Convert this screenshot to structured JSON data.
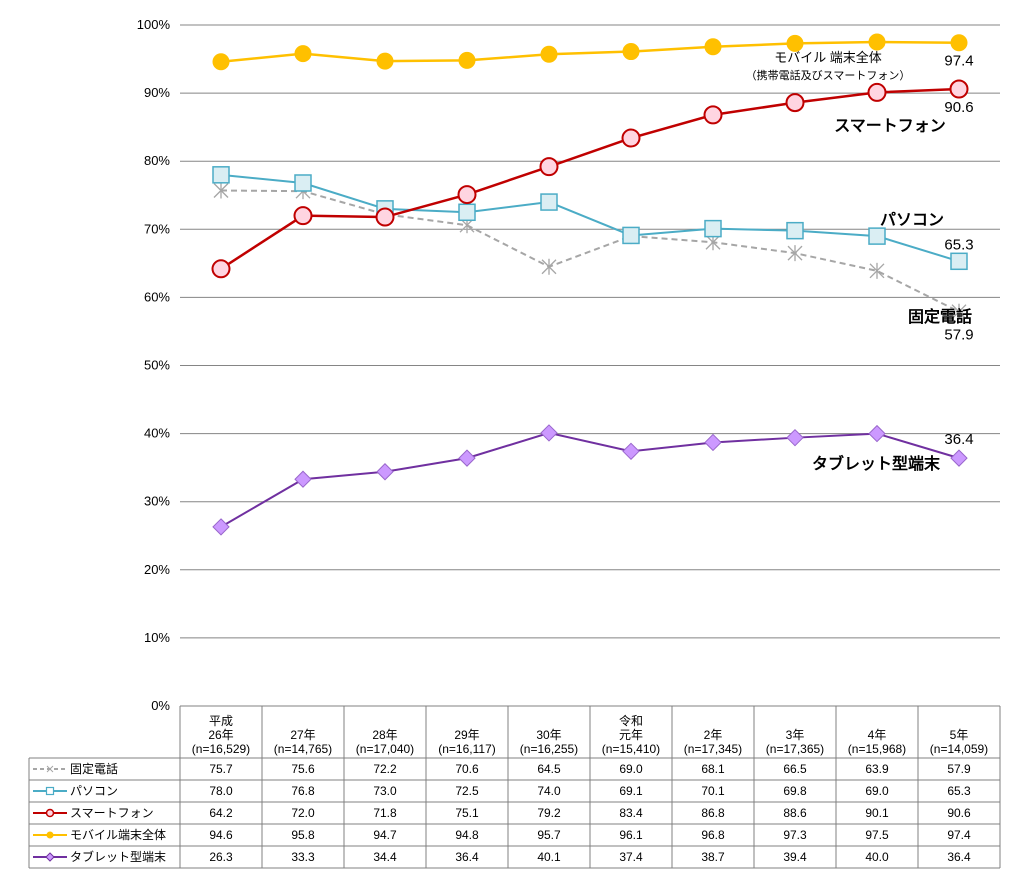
{
  "chart_data": {
    "type": "line",
    "y_axis": {
      "min": 0,
      "max": 100,
      "step": 10,
      "unit": "%",
      "ticks": [
        "0%",
        "10%",
        "20%",
        "30%",
        "40%",
        "50%",
        "60%",
        "70%",
        "80%",
        "90%",
        "100%"
      ]
    },
    "grid": true,
    "categories": [
      {
        "lines": [
          "平成",
          "26年",
          "(n=16,529)"
        ]
      },
      {
        "lines": [
          "27年",
          "(n=14,765)"
        ]
      },
      {
        "lines": [
          "28年",
          "(n=17,040)"
        ]
      },
      {
        "lines": [
          "29年",
          "(n=16,117)"
        ]
      },
      {
        "lines": [
          "30年",
          "(n=16,255)"
        ]
      },
      {
        "lines": [
          "令和",
          "元年",
          "(n=15,410)"
        ]
      },
      {
        "lines": [
          "2年",
          "(n=17,345)"
        ]
      },
      {
        "lines": [
          "3年",
          "(n=17,365)"
        ]
      },
      {
        "lines": [
          "4年",
          "(n=15,968)"
        ]
      },
      {
        "lines": [
          "5年",
          "(n=14,059)"
        ]
      }
    ],
    "series": [
      {
        "name": "固定電話",
        "color": "#a6a6a6",
        "marker": "asterisk",
        "dashed": true,
        "values": [
          75.7,
          75.6,
          72.2,
          70.6,
          64.5,
          69.0,
          68.1,
          66.5,
          63.9,
          57.9
        ],
        "end_label": "57.9",
        "tag": "固定電話"
      },
      {
        "name": "パソコン",
        "color": "#4bacc6",
        "marker": "square",
        "dashed": false,
        "values": [
          78.0,
          76.8,
          73.0,
          72.5,
          74.0,
          69.1,
          70.1,
          69.8,
          69.0,
          65.3
        ],
        "end_label": "65.3",
        "tag": "パソコン"
      },
      {
        "name": "スマートフォン",
        "color": "#c00000",
        "marker": "circle",
        "dashed": false,
        "values": [
          64.2,
          72.0,
          71.8,
          75.1,
          79.2,
          83.4,
          86.8,
          88.6,
          90.1,
          90.6
        ],
        "end_label": "90.6",
        "tag": "スマートフォン"
      },
      {
        "name": "モバイル端末全体",
        "color": "#ffc000",
        "marker": "dot",
        "dashed": false,
        "values": [
          94.6,
          95.8,
          94.7,
          94.8,
          95.7,
          96.1,
          96.8,
          97.3,
          97.5,
          97.4
        ],
        "end_label": "97.4",
        "tag": "モバイル 端末全体",
        "tag_sub": "（携帯電話及びスマートフォン）"
      },
      {
        "name": "タブレット型端末",
        "color": "#7030a0",
        "marker": "diamond",
        "dashed": false,
        "values": [
          26.3,
          33.3,
          34.4,
          36.4,
          40.1,
          37.4,
          38.7,
          39.4,
          40.0,
          36.4
        ],
        "end_label": "36.4",
        "tag": "タブレット型端末"
      }
    ],
    "table": {
      "rows": [
        {
          "label": "固定電話",
          "cells": [
            "75.7",
            "75.6",
            "72.2",
            "70.6",
            "64.5",
            "69.0",
            "68.1",
            "66.5",
            "63.9",
            "57.9"
          ]
        },
        {
          "label": "パソコン",
          "cells": [
            "78.0",
            "76.8",
            "73.0",
            "72.5",
            "74.0",
            "69.1",
            "70.1",
            "69.8",
            "69.0",
            "65.3"
          ]
        },
        {
          "label": "スマートフォン",
          "cells": [
            "64.2",
            "72.0",
            "71.8",
            "75.1",
            "79.2",
            "83.4",
            "86.8",
            "88.6",
            "90.1",
            "90.6"
          ]
        },
        {
          "label": "モバイル端末全体",
          "cells": [
            "94.6",
            "95.8",
            "94.7",
            "94.8",
            "95.7",
            "96.1",
            "96.8",
            "97.3",
            "97.5",
            "97.4"
          ]
        },
        {
          "label": "タブレット型端末",
          "cells": [
            "26.3",
            "33.3",
            "34.4",
            "36.4",
            "40.1",
            "37.4",
            "38.7",
            "39.4",
            "40.0",
            "36.4"
          ]
        }
      ]
    }
  }
}
